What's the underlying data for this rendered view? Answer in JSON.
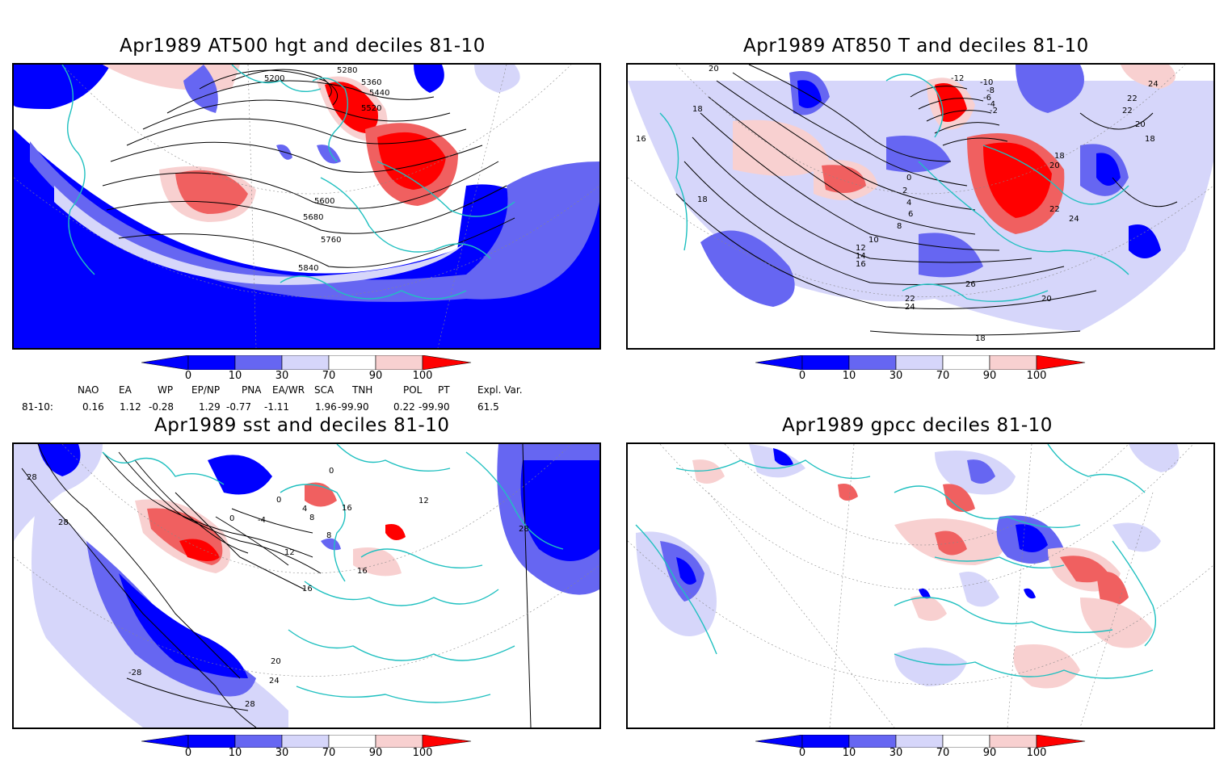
{
  "panels": [
    {
      "title": "Apr1989 AT500 hgt and deciles 81-10",
      "contour_labels": [
        "5200",
        "5280",
        "5360",
        "5440",
        "5520",
        "5600",
        "5680",
        "5760",
        "5840"
      ]
    },
    {
      "title": "Apr1989 AT850 T and deciles 81-10",
      "contour_labels": [
        "20",
        "18",
        "16",
        "18",
        "-12",
        "-10",
        "-8",
        "-6",
        "-4",
        "-2",
        "0",
        "2",
        "4",
        "6",
        "8",
        "10",
        "12",
        "14",
        "16",
        "18",
        "20",
        "22",
        "24",
        "26",
        "22",
        "24",
        "20",
        "18",
        "22",
        "24",
        "22",
        "20",
        "18"
      ]
    },
    {
      "title": "Apr1989 sst and deciles 81-10",
      "contour_labels": [
        "28",
        "28",
        "0",
        "0",
        "4",
        "8",
        "0",
        "-4",
        "8",
        "12",
        "16",
        "16",
        "20",
        "24",
        "28",
        "-28",
        "12",
        "16",
        "28"
      ]
    },
    {
      "title": "Apr1989 gpcc deciles 81-10",
      "contour_labels": []
    }
  ],
  "colorbar": {
    "labels": [
      "0",
      "10",
      "30",
      "70",
      "90",
      "100"
    ],
    "colors": [
      "#0000ff",
      "#6666f2",
      "#d6d6fa",
      "#ffffff",
      "#f8d0d0",
      "#f06060",
      "#ff0000"
    ]
  },
  "teleconnections": {
    "headers": [
      "NAO",
      "EA",
      "WP",
      "EP/NP",
      "PNA",
      "EA/WR",
      "SCA",
      "TNH",
      "POL",
      "PT",
      "Expl. Var."
    ],
    "row_label": "81-10:",
    "values": [
      "0.16",
      "1.12",
      "-0.28",
      "1.29",
      "-0.77",
      "-1.11",
      "1.96",
      "-99.90",
      "0.22",
      "-99.90",
      "61.5"
    ]
  }
}
